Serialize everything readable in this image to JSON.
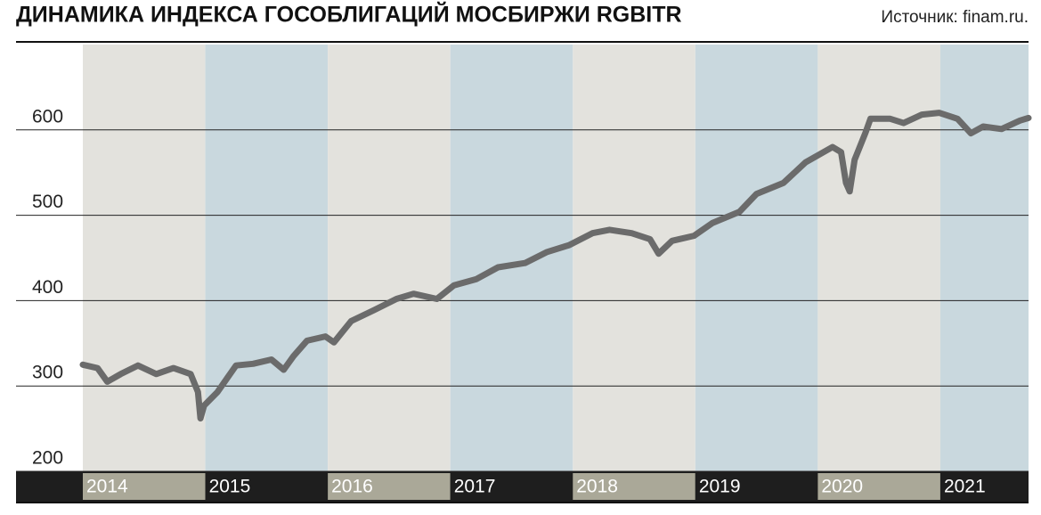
{
  "chart_data": {
    "type": "line",
    "title": "ДИНАМИКА ИНДЕКСА ГОСОБЛИГАЦИЙ МОСБИРЖИ RGBITR",
    "source": "Источник: finam.ru.",
    "x": [
      2014.0,
      2014.12,
      2014.2,
      2014.31,
      2014.45,
      2014.6,
      2014.74,
      2014.88,
      2014.94,
      2014.96,
      2014.99,
      2015.1,
      2015.25,
      2015.39,
      2015.54,
      2015.64,
      2015.72,
      2015.83,
      2015.98,
      2016.05,
      2016.19,
      2016.38,
      2016.56,
      2016.7,
      2016.89,
      2017.03,
      2017.21,
      2017.39,
      2017.61,
      2017.79,
      2017.97,
      2018.16,
      2018.3,
      2018.48,
      2018.63,
      2018.7,
      2018.81,
      2018.99,
      2019.14,
      2019.36,
      2019.5,
      2019.72,
      2019.9,
      2020.12,
      2020.19,
      2020.23,
      2020.26,
      2020.3,
      2020.39,
      2020.43,
      2020.59,
      2020.7,
      2020.85,
      2020.99,
      2021.14,
      2021.25,
      2021.35,
      2021.5,
      2021.65,
      2021.72
    ],
    "values": [
      325,
      321,
      305,
      314,
      324,
      314,
      321,
      314,
      293,
      262,
      277,
      293,
      324,
      326,
      331,
      319,
      335,
      353,
      358,
      351,
      376,
      389,
      402,
      408,
      402,
      418,
      425,
      439,
      444,
      457,
      465,
      479,
      483,
      479,
      472,
      455,
      470,
      476,
      491,
      504,
      525,
      538,
      562,
      580,
      574,
      538,
      528,
      565,
      597,
      613,
      613,
      608,
      618,
      620,
      613,
      596,
      604,
      601,
      611,
      614
    ],
    "color": "#6b6b6b",
    "xlim": [
      2014,
      2021.72
    ],
    "xticks": [
      2014,
      2015,
      2016,
      2017,
      2018,
      2019,
      2020,
      2021
    ],
    "ylim": [
      200,
      700
    ],
    "yticks": [
      200,
      300,
      400,
      500,
      600
    ],
    "grid": true,
    "band_colors": [
      "#e3e2dd",
      "#c9d8de"
    ],
    "label_band_colors": [
      "#aaa898",
      "#1e1e1e"
    ]
  }
}
